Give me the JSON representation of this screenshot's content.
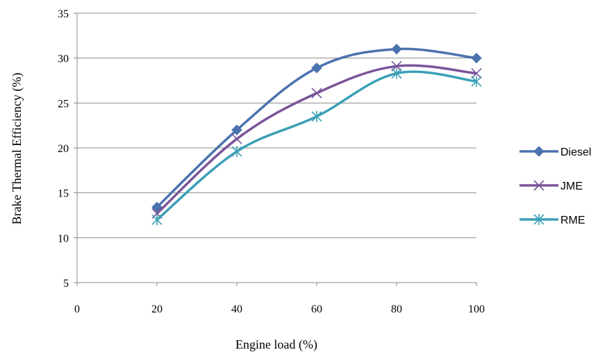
{
  "chart_data": {
    "type": "line",
    "title": "",
    "xlabel": "Engine load (%)",
    "ylabel": "Brake Thermal Efficiency (%)",
    "xlim": [
      0,
      100
    ],
    "ylim": [
      5,
      35
    ],
    "xticks": [
      0,
      20,
      40,
      60,
      80,
      100
    ],
    "yticks": [
      5,
      10,
      15,
      20,
      25,
      30,
      35
    ],
    "grid": "horizontal",
    "legend_position": "right",
    "x": [
      20,
      40,
      60,
      80,
      100
    ],
    "series": [
      {
        "name": "Diesel",
        "color": "#4a72ad",
        "marker": "diamond",
        "values": [
          13.4,
          22.0,
          28.9,
          31.0,
          30.0
        ]
      },
      {
        "name": "JME",
        "color": "#7a559a",
        "marker": "x",
        "values": [
          12.7,
          21.0,
          26.1,
          29.1,
          28.3
        ]
      },
      {
        "name": "RME",
        "color": "#3a9fb6",
        "marker": "star",
        "values": [
          12.0,
          19.6,
          23.5,
          28.3,
          27.4
        ]
      }
    ]
  }
}
